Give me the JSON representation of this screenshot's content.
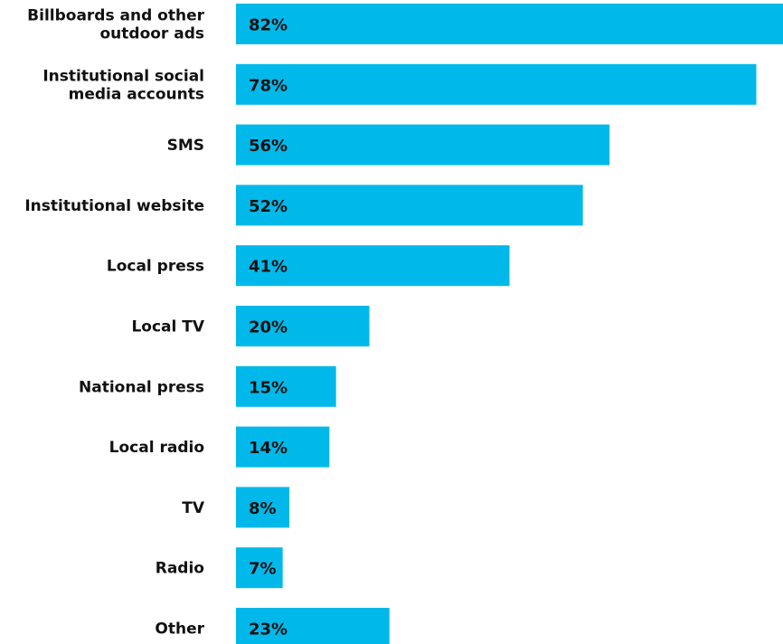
{
  "colors": {
    "bar": "#00b9ea",
    "text": "#111111",
    "background": "#ffffff"
  },
  "chart_data": {
    "type": "bar",
    "orientation": "horizontal",
    "categories": [
      [
        "Billboards and other",
        "outdoor ads"
      ],
      [
        "Institutional social",
        "media accounts"
      ],
      [
        "SMS"
      ],
      [
        "Institutional website"
      ],
      [
        "Local press"
      ],
      [
        "Local TV"
      ],
      [
        "National press"
      ],
      [
        "Local radio"
      ],
      [
        "TV"
      ],
      [
        "Radio"
      ],
      [
        "Other"
      ]
    ],
    "values": [
      82,
      78,
      56,
      52,
      41,
      20,
      15,
      14,
      8,
      7,
      23
    ],
    "value_labels": [
      "82%",
      "78%",
      "56%",
      "52%",
      "41%",
      "20%",
      "15%",
      "14%",
      "8%",
      "7%",
      "23%"
    ],
    "xlim": [
      0,
      82
    ],
    "grid": false,
    "legend": "none"
  }
}
